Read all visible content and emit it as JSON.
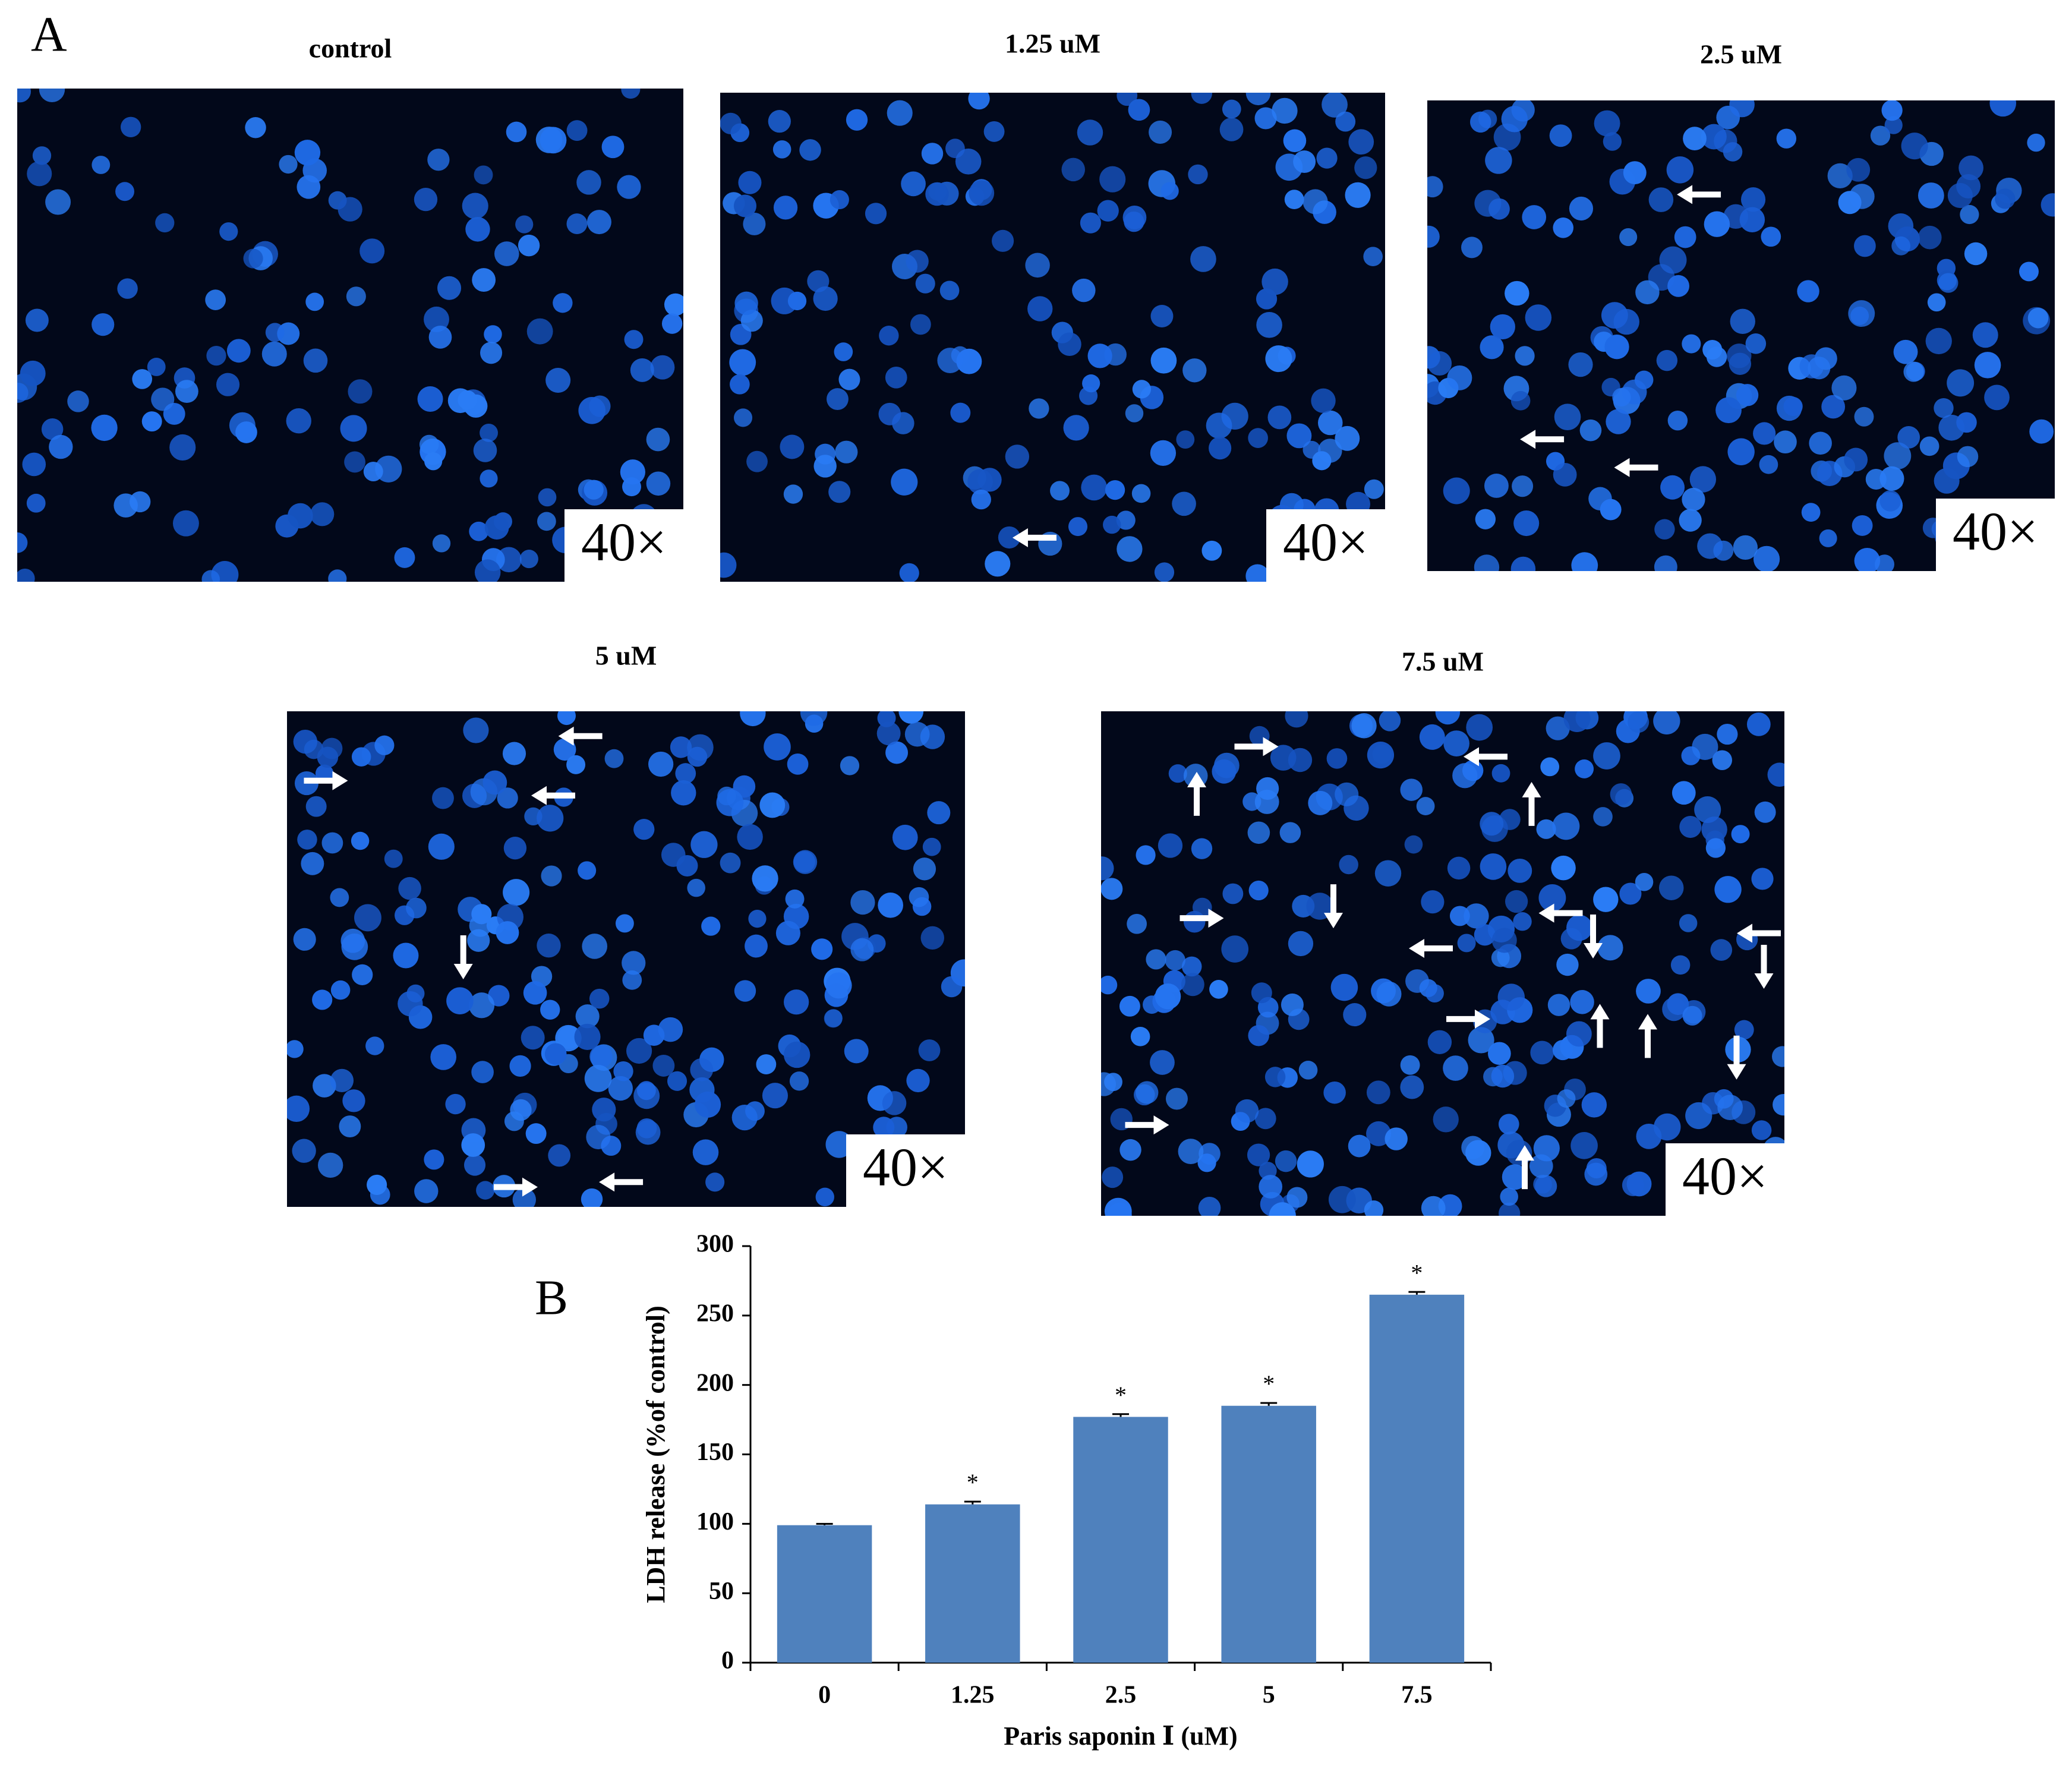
{
  "panel_a": {
    "label": "A",
    "images": [
      {
        "title": "control",
        "magnification": "40×"
      },
      {
        "title": "1.25  uM",
        "magnification": "40×"
      },
      {
        "title": "2.5  uM",
        "magnification": "40×"
      },
      {
        "title": "5  uM",
        "magnification": "40×"
      },
      {
        "title": "7.5  uM",
        "magnification": "40×"
      }
    ]
  },
  "panel_b_label": "B",
  "chart_data": {
    "type": "bar",
    "categories": [
      "0",
      "1.25",
      "2.5",
      "5",
      "7.5"
    ],
    "values": [
      99,
      114,
      177,
      185,
      265
    ],
    "errors": [
      1,
      2,
      2,
      2,
      2
    ],
    "annotations": [
      {
        "x": "1.25",
        "text": "*"
      },
      {
        "x": "2.5",
        "text": "*"
      },
      {
        "x": "5",
        "text": "*"
      },
      {
        "x": "7.5",
        "text": "*"
      }
    ],
    "color": "#4f81bd",
    "x_label": "Paris saponin Ⅰ (uM)",
    "y_label": "LDH release (%of control)",
    "ylim": [
      0,
      300
    ],
    "yticks": [
      0,
      50,
      100,
      150,
      200,
      250,
      300
    ],
    "grid": false
  }
}
